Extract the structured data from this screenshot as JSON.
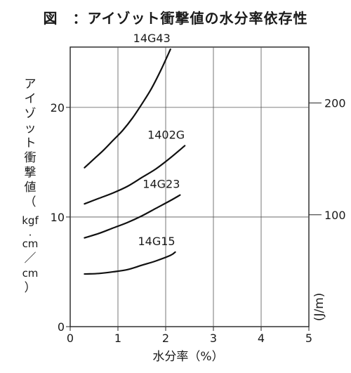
{
  "chart_data": {
    "type": "line",
    "title": "図　：アイゾット衝撃値の水分率依存性",
    "xlabel": "水分率（%）",
    "ylabel": "アイゾット衝撃値（kgf·cm/cm）",
    "ylabel_chars": [
      "ア",
      "イ",
      "ゾ",
      "ッ",
      "ト",
      "衝",
      "撃",
      "値",
      "（",
      "kgf",
      "·",
      "cm",
      "／",
      "cm",
      "）"
    ],
    "y2label": "(J/m)",
    "xlim": [
      0,
      5
    ],
    "ylim": [
      0,
      25.5
    ],
    "y2lim": [
      0,
      250
    ],
    "x_ticks": [
      0,
      1,
      2,
      3,
      4,
      5
    ],
    "y_ticks": [
      0,
      10,
      20
    ],
    "y2_ticks": [
      100,
      200
    ],
    "grid": true,
    "series": [
      {
        "name": "14G43",
        "x": [
          0.3,
          0.5,
          0.7,
          0.9,
          1.1,
          1.3,
          1.5,
          1.7,
          1.9,
          2.1
        ],
        "y": [
          14.5,
          15.3,
          16.1,
          17.0,
          17.9,
          19.0,
          20.3,
          21.7,
          23.4,
          25.3
        ]
      },
      {
        "name": "1402G",
        "x": [
          0.3,
          0.6,
          0.9,
          1.2,
          1.5,
          1.8,
          2.1,
          2.4
        ],
        "y": [
          11.2,
          11.7,
          12.2,
          12.8,
          13.6,
          14.4,
          15.4,
          16.5
        ]
      },
      {
        "name": "14G23",
        "x": [
          0.3,
          0.6,
          0.9,
          1.2,
          1.5,
          1.8,
          2.1,
          2.3
        ],
        "y": [
          8.1,
          8.5,
          9.0,
          9.5,
          10.1,
          10.8,
          11.5,
          12.0
        ]
      },
      {
        "name": "14G15",
        "x": [
          0.3,
          0.6,
          0.9,
          1.2,
          1.5,
          1.8,
          2.1,
          2.2
        ],
        "y": [
          4.8,
          4.85,
          5.0,
          5.2,
          5.6,
          6.0,
          6.5,
          6.8
        ]
      }
    ]
  }
}
